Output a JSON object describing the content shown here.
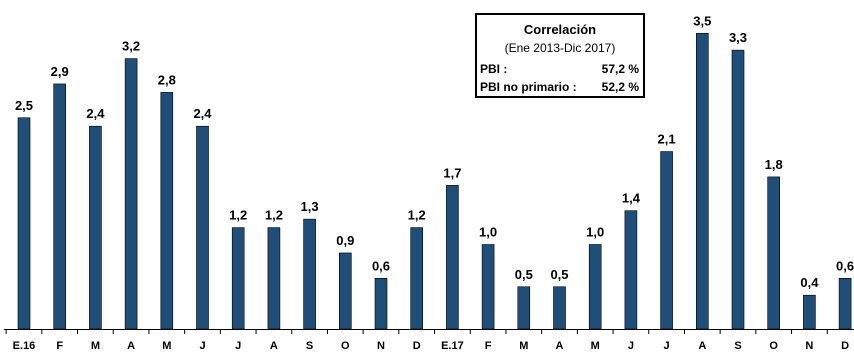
{
  "chart_data": {
    "type": "bar",
    "categories": [
      "E.16",
      "F",
      "M",
      "A",
      "M",
      "J",
      "J",
      "A",
      "S",
      "O",
      "N",
      "D",
      "E.17",
      "F",
      "M",
      "A",
      "M",
      "J",
      "J",
      "A",
      "S",
      "O",
      "N",
      "D"
    ],
    "values": [
      2.5,
      2.9,
      2.4,
      3.2,
      2.8,
      2.4,
      1.2,
      1.2,
      1.3,
      0.9,
      0.6,
      1.2,
      1.7,
      1.0,
      0.5,
      0.5,
      1.0,
      1.4,
      2.1,
      3.5,
      3.3,
      1.8,
      0.4,
      0.6
    ],
    "value_labels": [
      "2,5",
      "2,9",
      "2,4",
      "3,2",
      "2,8",
      "2,4",
      "1,2",
      "1,2",
      "1,3",
      "0,9",
      "0,6",
      "1,2",
      "1,7",
      "1,0",
      "0,5",
      "0,5",
      "1,0",
      "1,4",
      "2,1",
      "3,5",
      "3,3",
      "1,8",
      "0,4",
      "0,6"
    ],
    "ylim": [
      0,
      3.6
    ],
    "bar_color": "#1f4e79",
    "grid": false,
    "legend": "none"
  },
  "correlation": {
    "title": "Correlación",
    "period": "(Ene 2013-Dic 2017)",
    "rows": [
      {
        "label": "PBI :",
        "value": "57,2 %"
      },
      {
        "label": "PBI no primario :",
        "value": "52,2 %"
      }
    ]
  }
}
